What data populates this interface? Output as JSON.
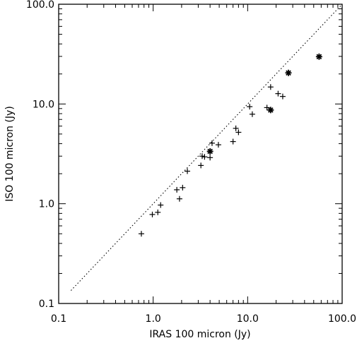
{
  "chart_data": {
    "type": "scatter",
    "title": "",
    "xlabel": "IRAS 100 micron (Jy)",
    "ylabel": "ISO 100 micron (Jy)",
    "xscale": "log",
    "yscale": "log",
    "xlim": [
      0.1,
      100.0
    ],
    "ylim": [
      0.1,
      100.0
    ],
    "grid": false,
    "legend": "none",
    "x_ticks": [
      {
        "value": 0.1,
        "label": "0.1"
      },
      {
        "value": 1.0,
        "label": "1.0"
      },
      {
        "value": 10.0,
        "label": "10.0"
      },
      {
        "value": 100.0,
        "label": "100.0"
      }
    ],
    "y_ticks": [
      {
        "value": 0.1,
        "label": "0.1"
      },
      {
        "value": 1.0,
        "label": "1.0"
      },
      {
        "value": 10.0,
        "label": "10.0"
      },
      {
        "value": 100.0,
        "label": "100.0"
      }
    ],
    "reference_line": {
      "style": "dotted",
      "slope": 1.0,
      "description": "y = x"
    },
    "series": [
      {
        "marker": "plus",
        "points": [
          [
            0.75,
            0.5
          ],
          [
            0.98,
            0.78
          ],
          [
            1.12,
            0.82
          ],
          [
            1.2,
            0.97
          ],
          [
            1.78,
            1.38
          ],
          [
            1.9,
            1.12
          ],
          [
            2.05,
            1.45
          ],
          [
            2.3,
            2.12
          ],
          [
            3.2,
            2.42
          ],
          [
            3.3,
            3.0
          ],
          [
            3.5,
            2.95
          ],
          [
            4.0,
            2.9
          ],
          [
            4.2,
            4.05
          ],
          [
            4.9,
            3.9
          ],
          [
            7.0,
            4.2
          ],
          [
            7.5,
            5.7
          ],
          [
            8.0,
            5.2
          ],
          [
            10.5,
            9.4
          ],
          [
            11.2,
            7.9
          ],
          [
            16.0,
            9.2
          ],
          [
            17.5,
            14.8
          ],
          [
            21.0,
            12.7
          ],
          [
            23.5,
            11.9
          ]
        ]
      },
      {
        "marker": "asterisk",
        "points": [
          [
            4.0,
            3.35
          ],
          [
            17.5,
            8.7
          ],
          [
            27.0,
            20.5
          ],
          [
            57.0,
            29.8
          ]
        ]
      }
    ]
  }
}
